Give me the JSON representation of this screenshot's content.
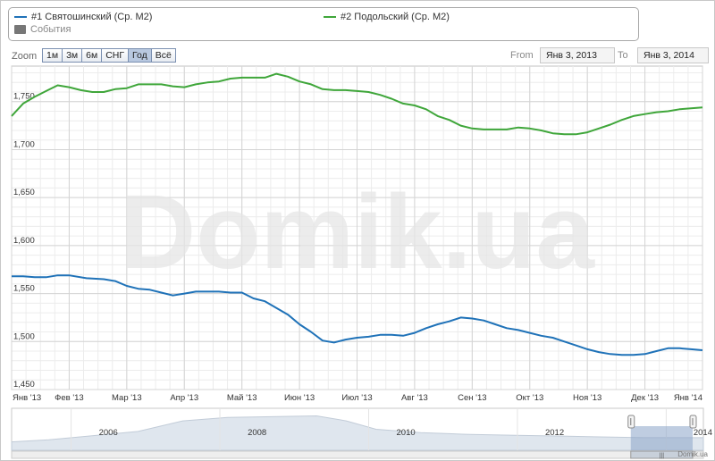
{
  "legend": {
    "series1": "#1 Святошинский (Ср. М2)",
    "series2": "#2 Подольский (Ср. М2)",
    "events": "События"
  },
  "zoom": {
    "label": "Zoom",
    "buttons": [
      "1м",
      "3м",
      "6м",
      "СНГ",
      "Год",
      "Всё"
    ],
    "active": "Год"
  },
  "range": {
    "from_label": "From",
    "from_value": "Янв 3, 2013",
    "to_label": "To",
    "to_value": "Янв 3, 2014"
  },
  "watermark": "Domik.ua",
  "credit": "Domik.ua",
  "colors": {
    "series1": "#1f72b8",
    "series2": "#3fa63a",
    "navigator_fill": "#dfe6ee"
  },
  "chart_data": {
    "type": "line",
    "title": "",
    "xlabel": "",
    "ylabel": "",
    "x_ticks": [
      "Янв '13",
      "Фев '13",
      "Мар '13",
      "Апр '13",
      "Май '13",
      "Июн '13",
      "Июл '13",
      "Авг '13",
      "Сен '13",
      "Окт '13",
      "Ноя '13",
      "Дек '13",
      "Янв '14"
    ],
    "y_ticks": [
      1450,
      1500,
      1550,
      1600,
      1650,
      1700,
      1750
    ],
    "ylim": [
      1450,
      1787
    ],
    "grid": true,
    "series": [
      {
        "name": "#1 Святошинский (Ср. М2)",
        "x": [
          0,
          0.2,
          0.4,
          0.6,
          0.8,
          1.0,
          1.3,
          1.6,
          1.8,
          2.0,
          2.2,
          2.4,
          2.6,
          2.8,
          3.0,
          3.2,
          3.4,
          3.6,
          3.8,
          4.0,
          4.2,
          4.4,
          4.6,
          4.8,
          5.0,
          5.2,
          5.4,
          5.6,
          5.8,
          6.0,
          6.2,
          6.4,
          6.6,
          6.8,
          7.0,
          7.2,
          7.4,
          7.6,
          7.8,
          8.0,
          8.2,
          8.4,
          8.6,
          8.8,
          9.0,
          9.2,
          9.4,
          9.6,
          9.8,
          10.0,
          10.2,
          10.4,
          10.6,
          10.8,
          11.0,
          11.2,
          11.4,
          11.6,
          11.8,
          12.0
        ],
        "y": [
          1568,
          1568,
          1567,
          1567,
          1569,
          1569,
          1566,
          1565,
          1563,
          1558,
          1555,
          1554,
          1551,
          1548,
          1550,
          1552,
          1552,
          1552,
          1551,
          1551,
          1545,
          1542,
          1535,
          1528,
          1518,
          1510,
          1501,
          1499,
          1502,
          1504,
          1505,
          1507,
          1507,
          1506,
          1509,
          1514,
          1518,
          1521,
          1525,
          1524,
          1522,
          1518,
          1514,
          1512,
          1509,
          1506,
          1504,
          1500,
          1496,
          1492,
          1489,
          1487,
          1486,
          1486,
          1487,
          1490,
          1493,
          1493,
          1492,
          1491
        ]
      },
      {
        "name": "#2 Подольский (Ср. М2)",
        "x": [
          0,
          0.2,
          0.4,
          0.6,
          0.8,
          1.0,
          1.2,
          1.4,
          1.6,
          1.8,
          2.0,
          2.2,
          2.4,
          2.6,
          2.8,
          3.0,
          3.2,
          3.4,
          3.6,
          3.8,
          4.0,
          4.2,
          4.4,
          4.6,
          4.8,
          5.0,
          5.2,
          5.4,
          5.6,
          5.8,
          6.0,
          6.2,
          6.4,
          6.6,
          6.8,
          7.0,
          7.2,
          7.4,
          7.6,
          7.8,
          8.0,
          8.2,
          8.4,
          8.6,
          8.8,
          9.0,
          9.2,
          9.4,
          9.6,
          9.8,
          10.0,
          10.2,
          10.4,
          10.6,
          10.8,
          11.0,
          11.2,
          11.4,
          11.6,
          11.8,
          12.0
        ],
        "y": [
          1735,
          1748,
          1755,
          1761,
          1767,
          1765,
          1762,
          1760,
          1760,
          1763,
          1764,
          1768,
          1768,
          1768,
          1766,
          1765,
          1768,
          1770,
          1771,
          1774,
          1775,
          1775,
          1775,
          1779,
          1776,
          1771,
          1768,
          1763,
          1762,
          1762,
          1761,
          1760,
          1757,
          1753,
          1748,
          1746,
          1742,
          1735,
          1731,
          1725,
          1722,
          1721,
          1721,
          1721,
          1723,
          1722,
          1720,
          1717,
          1716,
          1716,
          1718,
          1722,
          1726,
          1731,
          1735,
          1737,
          1739,
          1740,
          1742,
          1743,
          1744
        ]
      }
    ],
    "navigator": {
      "x_ticks": [
        "2006",
        "2008",
        "2010",
        "2012",
        "2014"
      ],
      "x_range": [
        2004.7,
        2014.0
      ],
      "selected": [
        2013.0,
        2014.0
      ]
    }
  }
}
